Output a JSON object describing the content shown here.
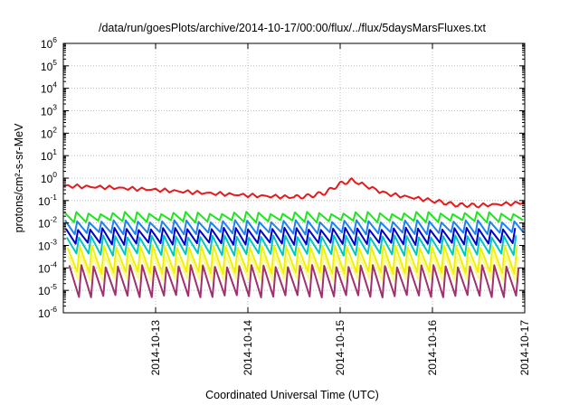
{
  "chart_data": {
    "type": "line",
    "title": "/data/run/goesPlots/archive/2014-10-17/00:00/flux/../flux/5daysMarsFluxes.txt",
    "xlabel": "Coordinated Universal Time (UTC)",
    "ylabel": "protons/cm²-s-sr-MeV",
    "y_scale": "log",
    "ylim": [
      1e-06,
      1000000.0
    ],
    "y_ticks": [
      {
        "base": "10",
        "exp": "-6"
      },
      {
        "base": "10",
        "exp": "-5"
      },
      {
        "base": "10",
        "exp": "-4"
      },
      {
        "base": "10",
        "exp": "-3"
      },
      {
        "base": "10",
        "exp": "-2"
      },
      {
        "base": "10",
        "exp": "-1"
      },
      {
        "base": "10",
        "exp": "0"
      },
      {
        "base": "10",
        "exp": "1"
      },
      {
        "base": "10",
        "exp": "2"
      },
      {
        "base": "10",
        "exp": "3"
      },
      {
        "base": "10",
        "exp": "4"
      },
      {
        "base": "10",
        "exp": "5"
      },
      {
        "base": "10",
        "exp": "6"
      }
    ],
    "xlim": [
      "2014-10-12 00:00",
      "2014-10-17 00:00"
    ],
    "x_ticks": [
      "2014-10-13",
      "2014-10-14",
      "2014-10-15",
      "2014-10-16",
      "2014-10-17"
    ],
    "grid": true,
    "legend": "none",
    "series": [
      {
        "color": "#e41a1c",
        "pattern": "smooth",
        "x": [
          "2014-10-12 00:00",
          "2014-10-12 12:00",
          "2014-10-13 00:00",
          "2014-10-13 12:00",
          "2014-10-14 00:00",
          "2014-10-14 12:00",
          "2014-10-14 16:00",
          "2014-10-14 20:00",
          "2014-10-15 00:00",
          "2014-10-15 03:00",
          "2014-10-15 12:00",
          "2014-10-16 00:00",
          "2014-10-16 06:00",
          "2014-10-16 12:00",
          "2014-10-17 00:00"
        ],
        "y": [
          0.45,
          0.38,
          0.3,
          0.22,
          0.17,
          0.14,
          0.16,
          0.22,
          0.55,
          0.8,
          0.2,
          0.1,
          0.065,
          0.06,
          0.08
        ]
      },
      {
        "color": "#1ee61e",
        "pattern": "sawtooth",
        "peak": 0.028,
        "trough": 0.012
      },
      {
        "color": "#1e82f0",
        "pattern": "sawtooth",
        "peak": 0.012,
        "trough": 0.0035
      },
      {
        "color": "#0000c8",
        "pattern": "sawtooth",
        "peak": 0.0055,
        "trough": 0.0012
      },
      {
        "color": "#00c8be",
        "pattern": "sawtooth",
        "peak": 0.0025,
        "trough": 0.0004
      },
      {
        "color": "#f0f000",
        "pattern": "sawtooth",
        "peak": 0.0009,
        "trough": 6e-05
      },
      {
        "color": "#fafa8c",
        "pattern": "sawtooth",
        "peak": 0.00035,
        "trough": 3e-05
      },
      {
        "color": "#a0306e",
        "pattern": "sawtooth",
        "peak": 0.00012,
        "trough": 5.5e-06
      }
    ]
  }
}
